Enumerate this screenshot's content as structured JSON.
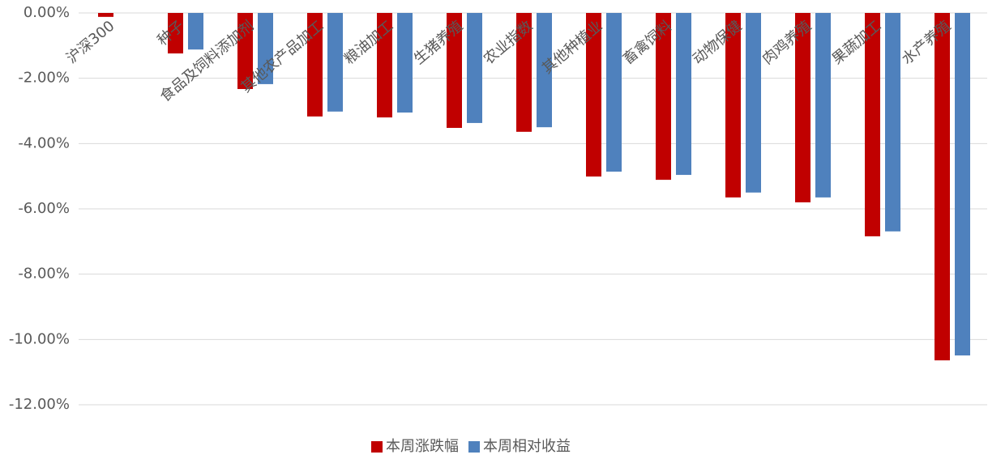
{
  "chart_data": {
    "type": "bar",
    "categories": [
      "沪深300",
      "种子",
      "食品及饲料添加剂",
      "其他农产品加工",
      "粮油加工",
      "生猪养殖",
      "农业指数",
      "其他种植业",
      "畜禽饲料",
      "动物保健",
      "肉鸡养殖",
      "果蔬加工",
      "水产养殖"
    ],
    "series": [
      {
        "name": "本周涨跌幅",
        "color": "#c00000",
        "values": [
          -0.12,
          -1.24,
          -2.33,
          -3.17,
          -3.2,
          -3.52,
          -3.64,
          -5.01,
          -5.11,
          -5.65,
          -5.8,
          -6.84,
          -10.64
        ]
      },
      {
        "name": "本周相对收益",
        "color": "#4f81bd",
        "values": [
          0,
          -1.12,
          -2.18,
          -3.02,
          -3.05,
          -3.37,
          -3.5,
          -4.86,
          -4.96,
          -5.5,
          -5.65,
          -6.69,
          -10.49
        ]
      }
    ],
    "ylim": [
      -12,
      0
    ],
    "yticks": [
      {
        "value": 0,
        "label": "0.00%"
      },
      {
        "value": -2,
        "label": "-2.00%"
      },
      {
        "value": -4,
        "label": "-4.00%"
      },
      {
        "value": -6,
        "label": "-6.00%"
      },
      {
        "value": -8,
        "label": "-8.00%"
      },
      {
        "value": -10,
        "label": "-10.00%"
      },
      {
        "value": -12,
        "label": "-12.00%"
      }
    ],
    "grid": true,
    "legend": "bottom"
  }
}
